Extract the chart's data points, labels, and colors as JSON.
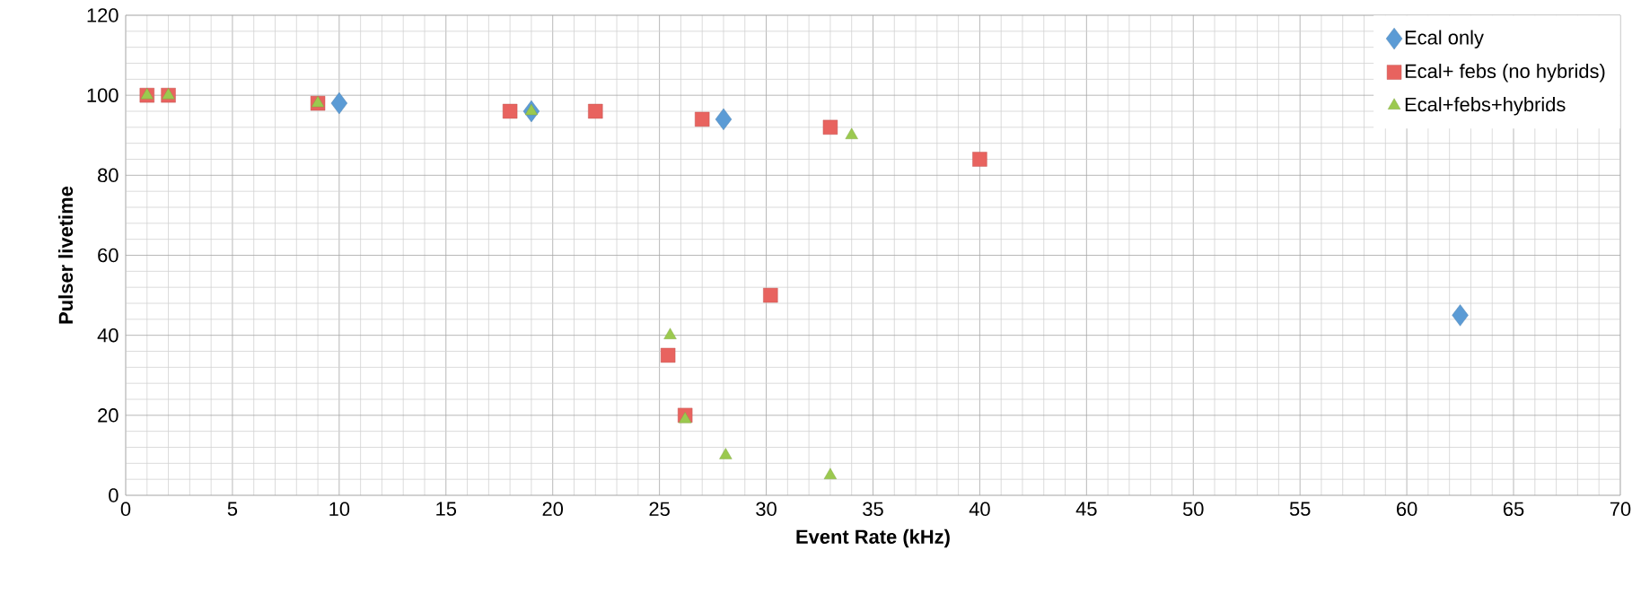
{
  "chart_data": {
    "type": "scatter",
    "xlabel": "Event Rate (kHz)",
    "ylabel": "Pulser livetime",
    "xlim": [
      0,
      70
    ],
    "ylim": [
      0,
      120
    ],
    "xticks": [
      0,
      5,
      10,
      15,
      20,
      25,
      30,
      35,
      40,
      45,
      50,
      55,
      60,
      65,
      70
    ],
    "yticks": [
      0,
      20,
      40,
      60,
      80,
      100,
      120
    ],
    "grid": true,
    "legend": "top right",
    "series": [
      {
        "name": "Ecal only",
        "color": "#5b9bd5",
        "marker": "diamond",
        "x": [
          10,
          19,
          28,
          62.5
        ],
        "values": [
          98,
          96,
          94,
          45
        ]
      },
      {
        "name": "Ecal+ febs (no hybrids)",
        "color": "#e8635f",
        "marker": "square",
        "x": [
          1,
          2,
          9,
          18,
          22,
          27,
          33,
          40,
          30.2,
          25.4,
          26.2
        ],
        "values": [
          100,
          100,
          98,
          96,
          96,
          94,
          92,
          84,
          50,
          35,
          20
        ]
      },
      {
        "name": "Ecal+febs+hybrids",
        "color": "#9bc94f",
        "marker": "triangle",
        "x": [
          1,
          2,
          9,
          19,
          34,
          25.5,
          26.2,
          28.1,
          33
        ],
        "values": [
          100,
          100,
          98,
          96,
          90,
          40,
          19,
          10,
          5
        ]
      }
    ]
  }
}
